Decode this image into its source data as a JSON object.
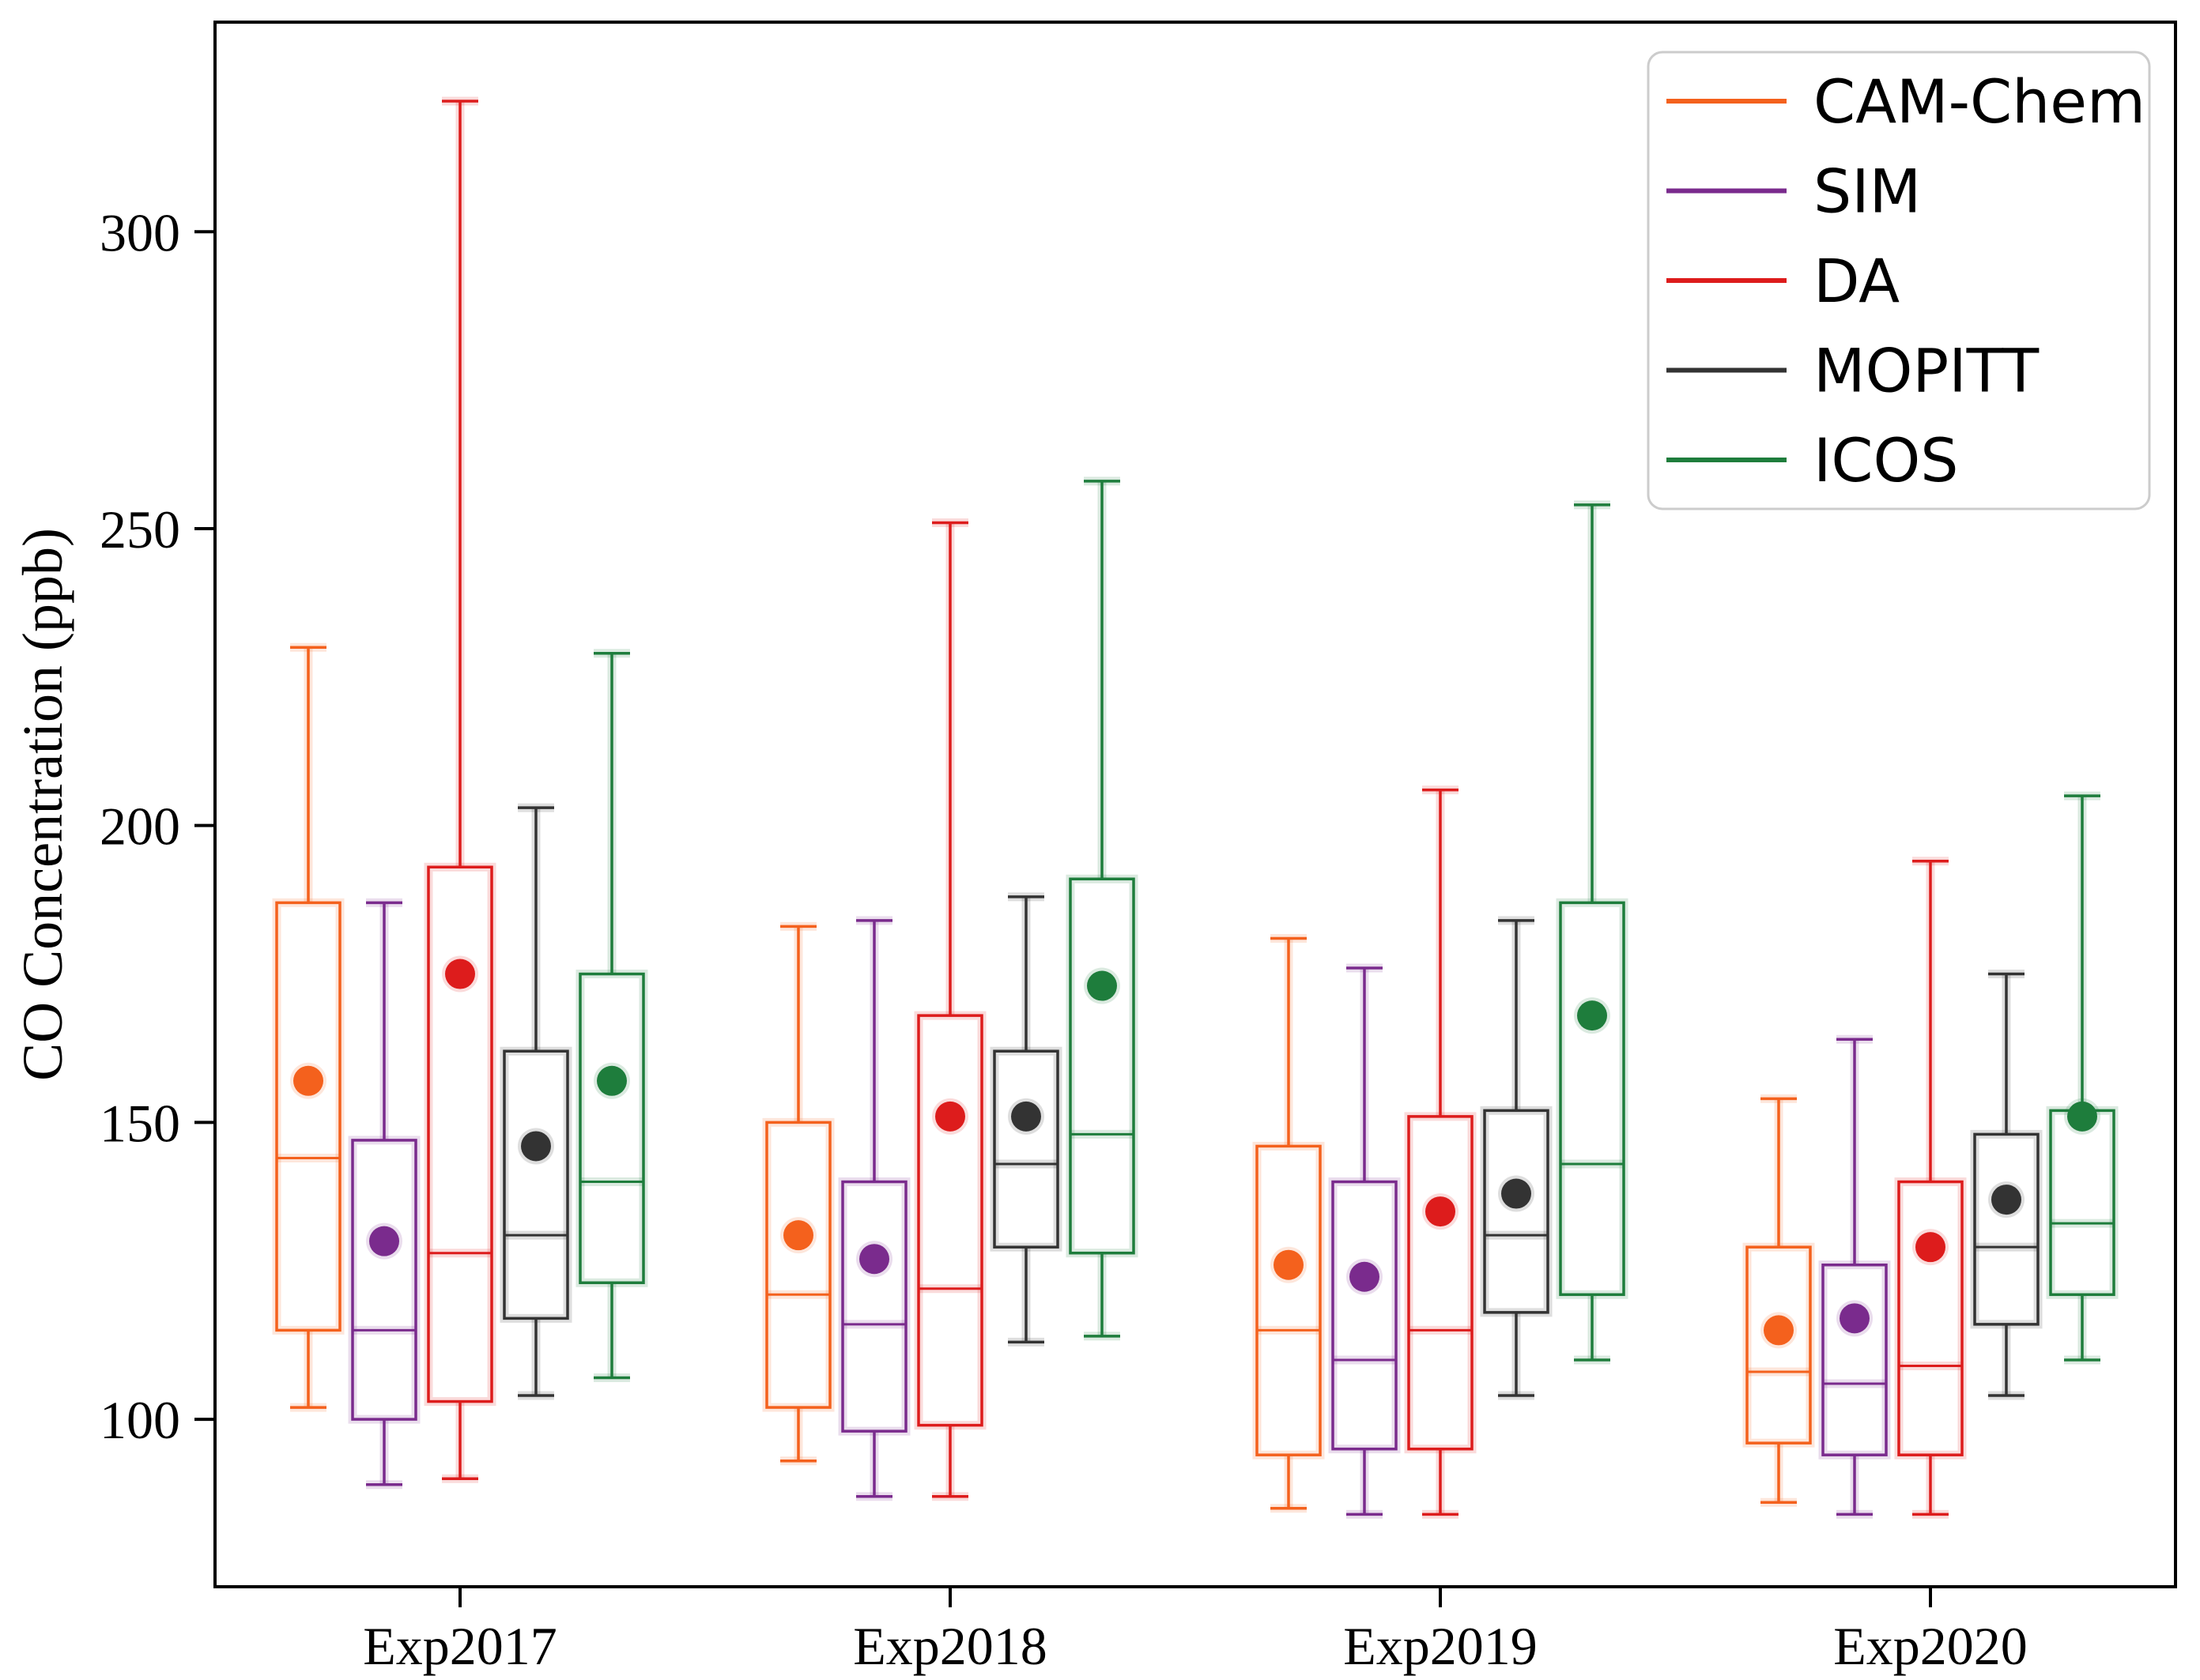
{
  "figure": {
    "background": "#ffffff",
    "frame_color": "#000000"
  },
  "chart_data": {
    "type": "box",
    "title": "",
    "xlabel": "",
    "ylabel": "CO Concentration (ppb)",
    "categories": [
      "Exp2017",
      "Exp2018",
      "Exp2019",
      "Exp2020"
    ],
    "y_ticks": [
      100,
      150,
      200,
      250,
      300
    ],
    "ylim": [
      71.8,
      335.3
    ],
    "grid": false,
    "legend_position": "upper-right",
    "legend_border_color": "#cccccc",
    "mean_marker": "filled-circle",
    "series": [
      {
        "name": "CAM-Chem",
        "color": "#f4611d",
        "boxes": [
          {
            "whisker_low": 102,
            "q1": 115,
            "median": 144,
            "q3": 187,
            "whisker_high": 230,
            "mean": 157
          },
          {
            "whisker_low": 93,
            "q1": 102,
            "median": 121,
            "q3": 150,
            "whisker_high": 183,
            "mean": 131
          },
          {
            "whisker_low": 85,
            "q1": 94,
            "median": 115,
            "q3": 146,
            "whisker_high": 181,
            "mean": 126
          },
          {
            "whisker_low": 86,
            "q1": 96,
            "median": 108,
            "q3": 129,
            "whisker_high": 154,
            "mean": 115
          }
        ]
      },
      {
        "name": "SIM",
        "color": "#7a2b8d",
        "boxes": [
          {
            "whisker_low": 89,
            "q1": 100,
            "median": 115,
            "q3": 147,
            "whisker_high": 187,
            "mean": 130
          },
          {
            "whisker_low": 87,
            "q1": 98,
            "median": 116,
            "q3": 140,
            "whisker_high": 184,
            "mean": 127
          },
          {
            "whisker_low": 84,
            "q1": 95,
            "median": 110,
            "q3": 140,
            "whisker_high": 176,
            "mean": 124
          },
          {
            "whisker_low": 84,
            "q1": 94,
            "median": 106,
            "q3": 126,
            "whisker_high": 164,
            "mean": 117
          }
        ]
      },
      {
        "name": "DA",
        "color": "#dd1c1c",
        "boxes": [
          {
            "whisker_low": 90,
            "q1": 103,
            "median": 128,
            "q3": 193,
            "whisker_high": 322,
            "mean": 175
          },
          {
            "whisker_low": 87,
            "q1": 99,
            "median": 122,
            "q3": 168,
            "whisker_high": 251,
            "mean": 151
          },
          {
            "whisker_low": 84,
            "q1": 95,
            "median": 115,
            "q3": 151,
            "whisker_high": 206,
            "mean": 135
          },
          {
            "whisker_low": 84,
            "q1": 94,
            "median": 109,
            "q3": 140,
            "whisker_high": 194,
            "mean": 129
          }
        ]
      },
      {
        "name": "MOPITT",
        "color": "#333333",
        "boxes": [
          {
            "whisker_low": 104,
            "q1": 117,
            "median": 131,
            "q3": 162,
            "whisker_high": 203,
            "mean": 146
          },
          {
            "whisker_low": 113,
            "q1": 129,
            "median": 143,
            "q3": 162,
            "whisker_high": 188,
            "mean": 151
          },
          {
            "whisker_low": 104,
            "q1": 118,
            "median": 131,
            "q3": 152,
            "whisker_high": 184,
            "mean": 138
          },
          {
            "whisker_low": 104,
            "q1": 116,
            "median": 129,
            "q3": 148,
            "whisker_high": 175,
            "mean": 137
          }
        ]
      },
      {
        "name": "ICOS",
        "color": "#1e7d3c",
        "boxes": [
          {
            "whisker_low": 107,
            "q1": 123,
            "median": 140,
            "q3": 175,
            "whisker_high": 229,
            "mean": 157
          },
          {
            "whisker_low": 114,
            "q1": 128,
            "median": 148,
            "q3": 191,
            "whisker_high": 258,
            "mean": 173
          },
          {
            "whisker_low": 110,
            "q1": 121,
            "median": 143,
            "q3": 187,
            "whisker_high": 254,
            "mean": 168
          },
          {
            "whisker_low": 110,
            "q1": 121,
            "median": 133,
            "q3": 152,
            "whisker_high": 205,
            "mean": 151
          }
        ]
      }
    ]
  }
}
